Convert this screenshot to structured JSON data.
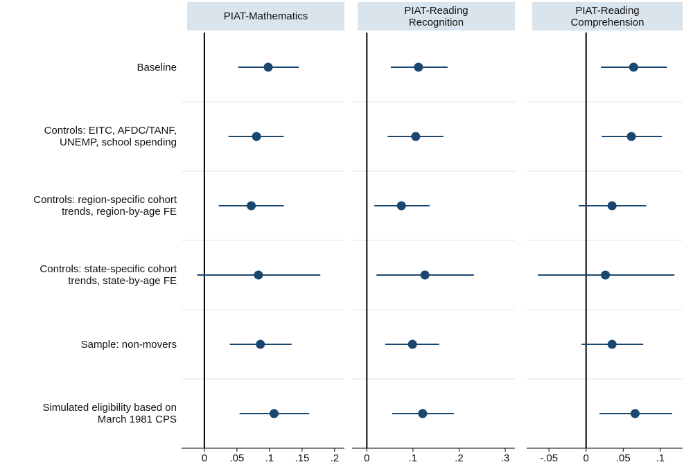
{
  "chart_data": {
    "type": "coefplot",
    "categories": [
      "Baseline",
      "Controls: EITC, AFDC/TANF,\nUNEMP, school spending",
      "Controls: region-specific cohort\ntrends, region-by-age FE",
      "Controls: state-specific cohort\ntrends, state-by-age FE",
      "Sample: non-movers",
      "Simulated eligibility based on\nMarch 1981 CPS"
    ],
    "color": "#1a476f",
    "reference_line": 0,
    "panels": [
      {
        "title": "PIAT-Mathematics",
        "values": [
          0.098,
          0.08,
          0.072,
          0.083,
          0.086,
          0.107
        ],
        "lower": [
          0.052,
          0.037,
          0.022,
          -0.011,
          0.039,
          0.054
        ],
        "upper": [
          0.145,
          0.122,
          0.122,
          0.178,
          0.134,
          0.161
        ],
        "xlim": [
          -0.035,
          0.215
        ],
        "xticks": [
          0,
          {
            "value": 0.05,
            "label": ".05"
          },
          {
            "value": 0.1,
            "label": ".1"
          },
          {
            "value": 0.15,
            "label": ".15"
          },
          {
            "value": 0.2,
            "label": ".2"
          }
        ]
      },
      {
        "title": "PIAT-Reading\nRecognition",
        "values": [
          0.112,
          0.106,
          0.075,
          0.126,
          0.099,
          0.121
        ],
        "lower": [
          0.052,
          0.045,
          0.016,
          0.021,
          0.04,
          0.055
        ],
        "upper": [
          0.175,
          0.166,
          0.136,
          0.232,
          0.157,
          0.189
        ],
        "xlim": [
          -0.032,
          0.321
        ],
        "xticks": [
          0,
          {
            "value": 0.1,
            "label": ".1"
          },
          {
            "value": 0.2,
            "label": ".2"
          },
          {
            "value": 0.3,
            "label": ".3"
          }
        ]
      },
      {
        "title": "PIAT-Reading\nComprehension",
        "values": [
          0.064,
          0.061,
          0.035,
          0.026,
          0.035,
          0.066
        ],
        "lower": [
          0.02,
          0.021,
          -0.01,
          -0.065,
          -0.006,
          0.018
        ],
        "upper": [
          0.109,
          0.102,
          0.081,
          0.119,
          0.077,
          0.116
        ],
        "xlim": [
          -0.08,
          0.13
        ],
        "xticks": [
          {
            "value": -0.05,
            "label": "-.05"
          },
          0,
          {
            "value": 0.05,
            "label": ".05"
          },
          {
            "value": 0.1,
            "label": ".1"
          }
        ]
      }
    ]
  }
}
